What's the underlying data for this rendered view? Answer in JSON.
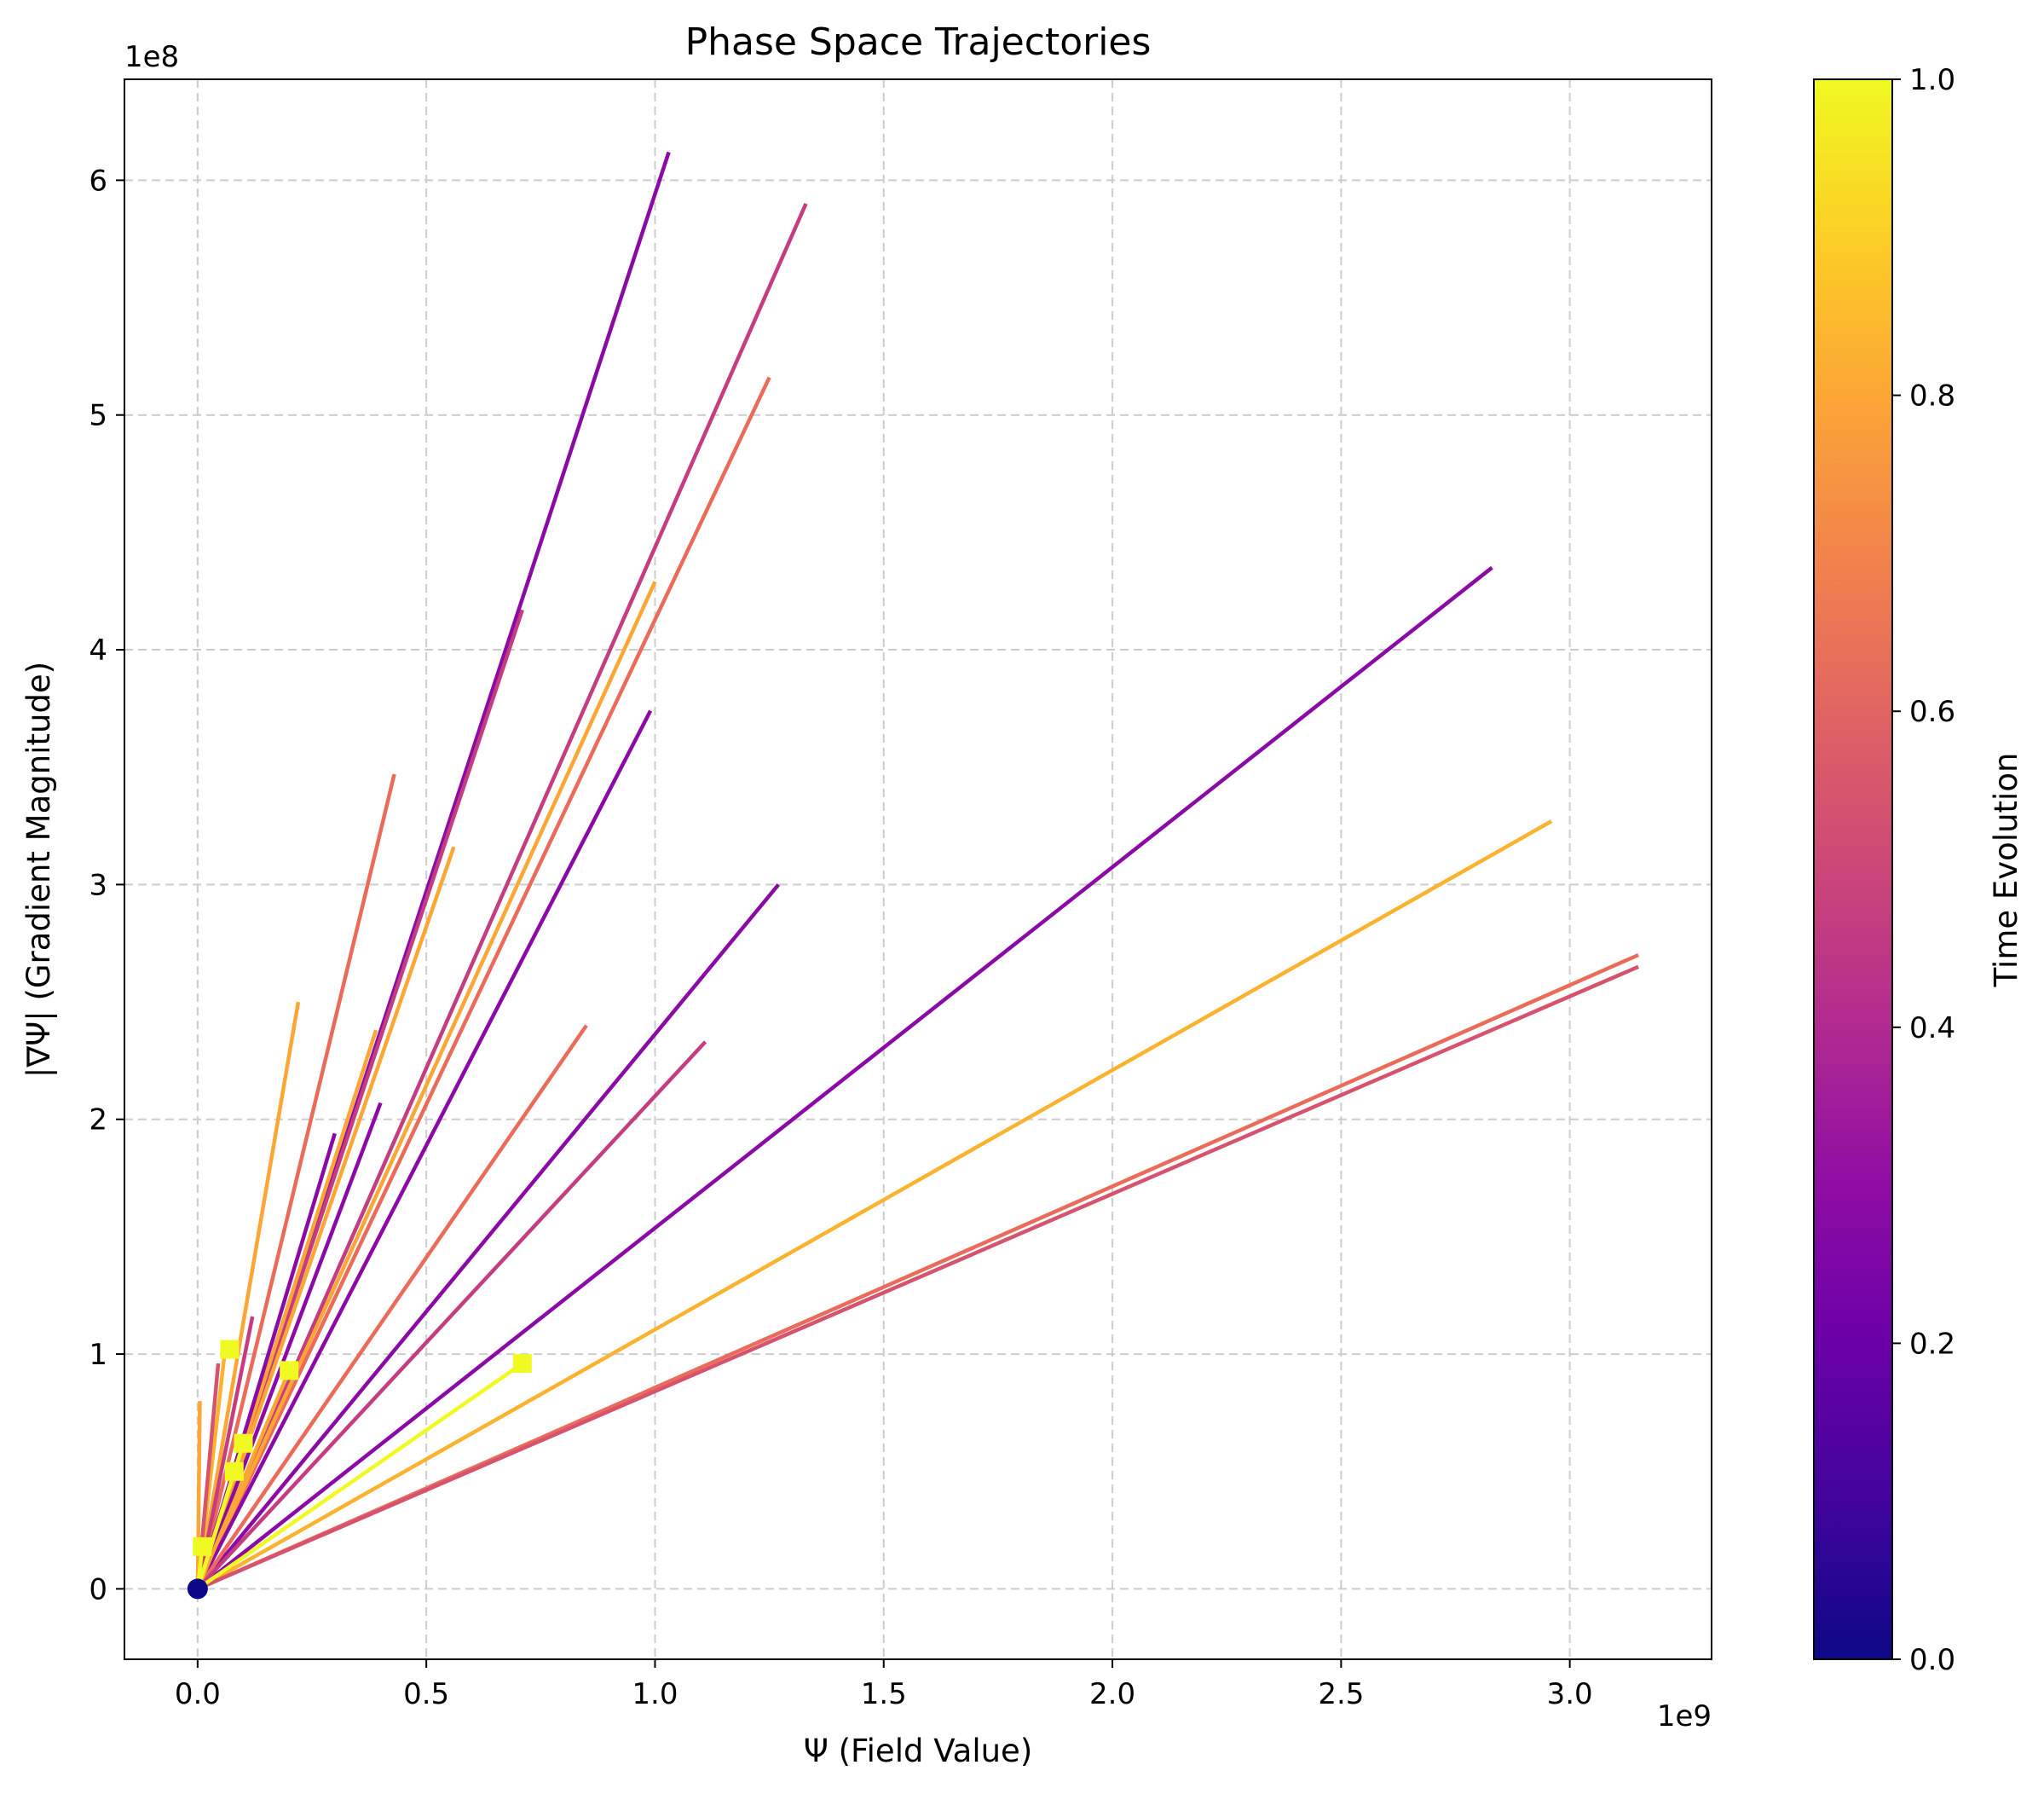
{
  "chart_data": {
    "type": "line",
    "title": "Phase Space Trajectories",
    "xlabel": "Ψ (Field Value)",
    "ylabel": "|∇Ψ| (Gradient Magnitude)",
    "x_offset_label": "1e9",
    "y_offset_label": "1e8",
    "xlim": [
      -0.16,
      3.31
    ],
    "ylim": [
      -0.3,
      6.43
    ],
    "x_unit_scale": 1000000000,
    "y_unit_scale": 100000000,
    "x_ticks": [
      0.0,
      0.5,
      1.0,
      1.5,
      2.0,
      2.5,
      3.0
    ],
    "x_tick_labels": [
      "0.0",
      "0.5",
      "1.0",
      "1.5",
      "2.0",
      "2.5",
      "3.0"
    ],
    "y_ticks": [
      0,
      1,
      2,
      3,
      4,
      5,
      6
    ],
    "y_tick_labels": [
      "0",
      "1",
      "2",
      "3",
      "4",
      "5",
      "6"
    ],
    "grid": true,
    "colorbar": {
      "label": "Time Evolution",
      "colormap": "plasma",
      "range": [
        0.0,
        1.0
      ],
      "ticks": [
        0.0,
        0.2,
        0.4,
        0.6,
        0.8,
        1.0
      ],
      "tick_labels": [
        "0.0",
        "0.2",
        "0.4",
        "0.6",
        "0.8",
        "1.0"
      ]
    },
    "start_marker": {
      "x": 0.0,
      "y": 0.0,
      "color": "#0d0887"
    },
    "end_markers": [
      {
        "x": 0.71,
        "y": 0.96,
        "color": "#f0f921"
      },
      {
        "x": 0.1,
        "y": 0.62,
        "color": "#f0f921"
      },
      {
        "x": 0.07,
        "y": 1.02,
        "color": "#f0f921"
      },
      {
        "x": 0.08,
        "y": 0.5,
        "color": "#f0f921"
      },
      {
        "x": 0.01,
        "y": 0.18,
        "color": "#f0f921"
      },
      {
        "x": 0.2,
        "y": 0.93,
        "color": "#f0f921"
      }
    ],
    "series": [
      {
        "x": [
          0,
          1.03
        ],
        "y": [
          0,
          6.12
        ],
        "color": "#8b0aa5"
      },
      {
        "x": [
          0,
          1.33
        ],
        "y": [
          0,
          5.9
        ],
        "color": "#c33d80"
      },
      {
        "x": [
          0,
          1.25
        ],
        "y": [
          0,
          5.16
        ],
        "color": "#eb6b5a"
      },
      {
        "x": [
          0,
          2.83
        ],
        "y": [
          0,
          4.35
        ],
        "color": "#8b0aa5"
      },
      {
        "x": [
          0,
          1.0
        ],
        "y": [
          0,
          4.29
        ],
        "color": "#fca636"
      },
      {
        "x": [
          0,
          0.71
        ],
        "y": [
          0,
          4.17
        ],
        "color": "#c33d80"
      },
      {
        "x": [
          0,
          0.99
        ],
        "y": [
          0,
          3.74
        ],
        "color": "#8b0aa5"
      },
      {
        "x": [
          0,
          0.43
        ],
        "y": [
          0,
          3.47
        ],
        "color": "#eb6b5a"
      },
      {
        "x": [
          0,
          2.96
        ],
        "y": [
          0,
          3.27
        ],
        "color": "#fbb32f"
      },
      {
        "x": [
          0,
          0.56
        ],
        "y": [
          0,
          3.16
        ],
        "color": "#fca636"
      },
      {
        "x": [
          0,
          1.27
        ],
        "y": [
          0,
          3.0
        ],
        "color": "#8b0aa5"
      },
      {
        "x": [
          0,
          3.15
        ],
        "y": [
          0,
          2.7
        ],
        "color": "#eb6b5a"
      },
      {
        "x": [
          0,
          3.15
        ],
        "y": [
          0,
          2.65
        ],
        "color": "#d5536f"
      },
      {
        "x": [
          0,
          0.22
        ],
        "y": [
          0,
          2.5
        ],
        "color": "#fca636"
      },
      {
        "x": [
          0,
          0.85
        ],
        "y": [
          0,
          2.4
        ],
        "color": "#eb6b5a"
      },
      {
        "x": [
          0,
          0.39
        ],
        "y": [
          0,
          2.38
        ],
        "color": "#fca636"
      },
      {
        "x": [
          0,
          1.11
        ],
        "y": [
          0,
          2.33
        ],
        "color": "#c33d80"
      },
      {
        "x": [
          0,
          0.4
        ],
        "y": [
          0,
          2.07
        ],
        "color": "#8b0aa5"
      },
      {
        "x": [
          0,
          0.3
        ],
        "y": [
          0,
          1.94
        ],
        "color": "#8b0aa5"
      },
      {
        "x": [
          0,
          0.12
        ],
        "y": [
          0,
          1.16
        ],
        "color": "#c33d80"
      },
      {
        "x": [
          0,
          0.06
        ],
        "y": [
          0,
          1.02
        ],
        "color": "#fbb32f"
      },
      {
        "x": [
          0,
          0.045
        ],
        "y": [
          0,
          0.96
        ],
        "color": "#d5536f"
      },
      {
        "x": [
          0,
          0.2
        ],
        "y": [
          0,
          0.93
        ],
        "color": "#fca636"
      },
      {
        "x": [
          0,
          0.71
        ],
        "y": [
          0,
          0.96
        ],
        "color": "#f0f921"
      },
      {
        "x": [
          0,
          0.005
        ],
        "y": [
          0,
          0.8
        ],
        "color": "#fca636"
      },
      {
        "x": [
          0,
          0.1
        ],
        "y": [
          0,
          0.62
        ],
        "color": "#f0f921"
      },
      {
        "x": [
          0,
          0.08
        ],
        "y": [
          0,
          0.5
        ],
        "color": "#f0f921"
      },
      {
        "x": [
          0,
          0.01
        ],
        "y": [
          0,
          0.18
        ],
        "color": "#f0f921"
      }
    ]
  }
}
